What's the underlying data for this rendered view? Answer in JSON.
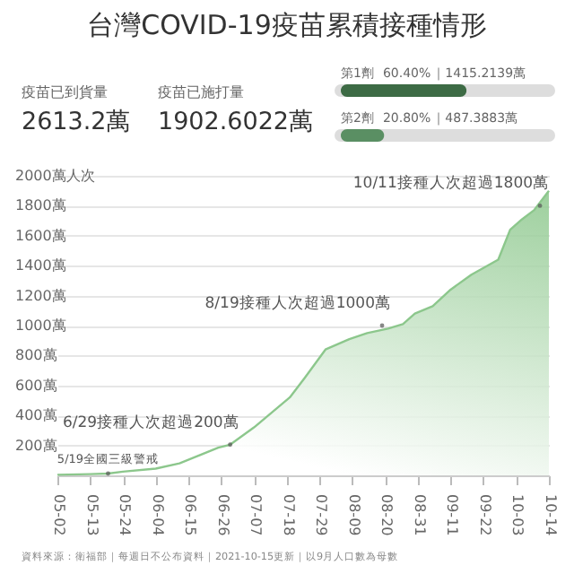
{
  "chart_data": [
    {
      "type": "other",
      "title": "台灣COVID-19疫苗累積接種情形",
      "annotations": [
        "疫苗已到貨量",
        "2613.2萬",
        "疫苗已施打量",
        "1902.6022萬"
      ]
    },
    {
      "type": "bar",
      "orientation": "horizontal",
      "categories": [
        "第1劑",
        "第2劑"
      ],
      "values": [
        60.4,
        20.8
      ],
      "value_labels": [
        "60.40%",
        "20.80%"
      ],
      "colors": [
        "#3d6b45",
        "#5a8f63"
      ],
      "xlim": [
        0,
        100
      ],
      "tick_labels": false,
      "annotations": [
        "｜1415.2139萬",
        "｜487.3883萬"
      ]
    },
    {
      "type": "area",
      "color": "#8cc78c",
      "x": [
        "--05-02",
        "--05-13",
        "--05-19",
        "--05-24",
        "--06-04",
        "--06-12",
        "--06-17",
        "--06-25",
        "--06-29",
        "--07-07",
        "--07-13",
        "--07-19",
        "--07-24",
        "--07-31",
        "--08-08",
        "--08-14",
        "--08-21",
        "--08-26",
        "--08-30",
        "--09-05",
        "--09-11",
        "--09-18",
        "--09-27",
        "--10-01",
        "--10-05",
        "--10-09",
        "--10-14"
      ],
      "values": [
        4,
        8,
        12,
        25,
        45,
        80,
        120,
        185,
        205,
        320,
        420,
        520,
        650,
        840,
        910,
        950,
        980,
        1010,
        1080,
        1130,
        1240,
        1340,
        1440,
        1640,
        1710,
        1770,
        1900
      ],
      "xlim": [
        "--05-02",
        "--10-14"
      ],
      "xticks": [
        {
          "value": "--05-02",
          "label": "05-02"
        },
        {
          "value": "--05-13",
          "label": "05-13"
        },
        {
          "value": "--05-24",
          "label": "05-24"
        },
        {
          "value": "--06-04",
          "label": "06-04"
        },
        {
          "value": "--06-15",
          "label": "06-15"
        },
        {
          "value": "--06-26",
          "label": "06-26"
        },
        {
          "value": "--07-07",
          "label": "07-07"
        },
        {
          "value": "--07-18",
          "label": "07-18"
        },
        {
          "value": "--07-29",
          "label": "07-29"
        },
        {
          "value": "--08-09",
          "label": "08-09"
        },
        {
          "value": "--08-20",
          "label": "08-20"
        },
        {
          "value": "--08-31",
          "label": "08-31"
        },
        {
          "value": "--09-11",
          "label": "09-11"
        },
        {
          "value": "--09-22",
          "label": "09-22"
        },
        {
          "value": "--10-03",
          "label": "10-03"
        },
        {
          "value": "--10-14",
          "label": "10-14"
        }
      ],
      "ylim": [
        0,
        2000
      ],
      "yticks": [
        {
          "value": 200,
          "label": "200萬"
        },
        {
          "value": 400,
          "label": "400萬"
        },
        {
          "value": 600,
          "label": "600萬"
        },
        {
          "value": 800,
          "label": "800萬"
        },
        {
          "value": 1000,
          "label": "1000萬"
        },
        {
          "value": 1200,
          "label": "1200萬"
        },
        {
          "value": 1400,
          "label": "1400萬"
        },
        {
          "value": 1600,
          "label": "1600萬"
        },
        {
          "value": 1800,
          "label": "1800萬"
        },
        {
          "value": 2000,
          "label": "2000萬人次"
        }
      ],
      "grid": "y",
      "annotations": [
        {
          "text": "5/19全國三級警戒",
          "x": "--05-19",
          "y": 12
        },
        {
          "text": "6/29接種人次超過200萬",
          "x": "--06-29",
          "y": 205
        },
        {
          "text": "8/19接種人次超過1000萬",
          "x": "--08-19",
          "y": 1000
        },
        {
          "text": "10/11接種人次超過1800萬",
          "x": "--10-11",
          "y": 1800
        },
        "資料來源：衛福部｜每週日不公布資料｜2021-10-15更新｜以9月人口數為母數"
      ]
    }
  ]
}
